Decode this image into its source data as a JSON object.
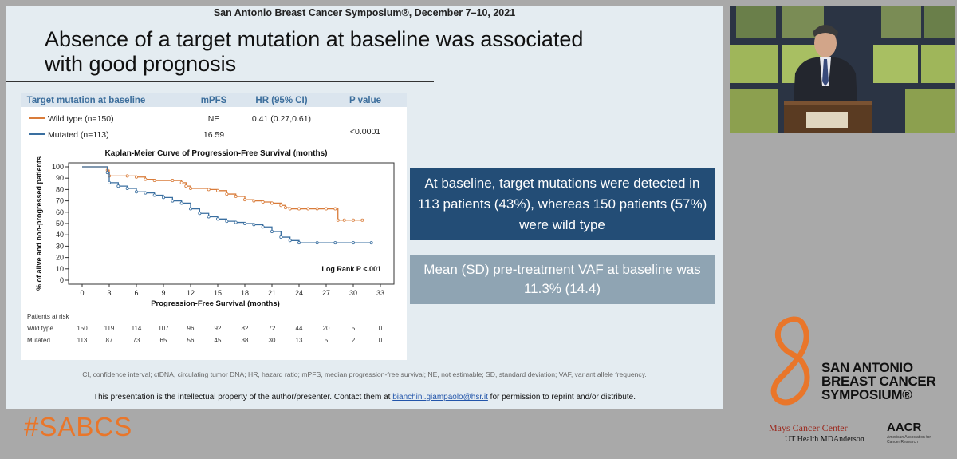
{
  "slide": {
    "conference": "San Antonio Breast Cancer Symposium®, December 7–10, 2021",
    "title_line1": "Absence of a target mutation at baseline was associated",
    "title_line2": "with good prognosis",
    "box1": "At baseline, target mutations were detected in 113 patients (43%), whereas 150 patients (57%) were wild type",
    "box2": "Mean (SD) pre-treatment VAF at baseline was 11.3% (14.4)",
    "footnote": "CI, confidence interval; ctDNA, circulating tumor DNA; HR, hazard ratio; mPFS, median progression-free survival; NE, not estimable; SD, standard deviation; VAF, variant allele frequency.",
    "ip_before": "This presentation is the intellectual property of the author/presenter. Contact them at ",
    "ip_email": "bianchini.giampaolo@hsr.it",
    "ip_after": " for permission to reprint and/or distribute."
  },
  "table": {
    "headers": [
      "Target mutation at baseline",
      "mPFS",
      "HR (95% CI)",
      "P value"
    ],
    "rows": [
      {
        "label": "Wild type (n=150)",
        "mpfs": "NE",
        "hr": "0.41 (0.27,0.61)"
      },
      {
        "label": "Mutated (n=113)",
        "mpfs": "16.59",
        "hr": ""
      }
    ],
    "p_value": "<0.0001"
  },
  "chart_data": {
    "type": "line",
    "title": "Kaplan-Meier Curve of Progression-Free Survival (months)",
    "xlabel": "Progression-Free Survival (months)",
    "ylabel": "% of alive and non-progressed patients",
    "xlim": [
      0,
      33
    ],
    "ylim": [
      0,
      100
    ],
    "xticks": [
      0,
      3,
      6,
      9,
      12,
      15,
      18,
      21,
      24,
      27,
      30,
      33
    ],
    "yticks": [
      0,
      10,
      20,
      30,
      40,
      50,
      60,
      70,
      80,
      90,
      100
    ],
    "annotation": "Log Rank P <.001",
    "colors": {
      "wild_type": "#d97c3a",
      "mutated": "#3a6fa0"
    },
    "series": [
      {
        "name": "Wild type (n=150)",
        "x": [
          0,
          2,
          2.8,
          3,
          5,
          6,
          7,
          8,
          10,
          11,
          11.5,
          12,
          14,
          15,
          16,
          17,
          18,
          19,
          20,
          21,
          22,
          22.5,
          23,
          24,
          25,
          26,
          27,
          28,
          28.3,
          29,
          30,
          31
        ],
        "y": [
          100,
          100,
          97,
          92,
          92,
          91,
          89,
          88,
          88,
          86,
          83,
          81,
          80,
          79,
          76,
          74,
          71,
          70,
          69,
          68,
          66,
          64,
          63,
          63,
          63,
          63,
          63,
          63,
          53,
          53,
          53,
          53
        ]
      },
      {
        "name": "Mutated (n=113)",
        "x": [
          0,
          2,
          2.8,
          3,
          4,
          5,
          6,
          7,
          8,
          9,
          10,
          11,
          12,
          13,
          14,
          15,
          16,
          17,
          18,
          19,
          20,
          21,
          22,
          23,
          24,
          26,
          28,
          30,
          32
        ],
        "y": [
          100,
          100,
          95,
          86,
          83,
          81,
          78,
          77,
          75,
          73,
          70,
          68,
          63,
          59,
          56,
          54,
          52,
          51,
          50,
          49,
          47,
          43,
          38,
          35,
          33,
          33,
          33,
          33,
          33
        ]
      }
    ],
    "at_risk_label": "Patients at risk",
    "at_risk": [
      {
        "name": "Wild type",
        "values": [
          150,
          119,
          114,
          107,
          96,
          92,
          82,
          72,
          44,
          20,
          5,
          0
        ]
      },
      {
        "name": "Mutated",
        "values": [
          113,
          87,
          73,
          65,
          56,
          45,
          38,
          30,
          13,
          5,
          2,
          0
        ]
      }
    ]
  },
  "sidebar": {
    "hashtag": "#SABCS",
    "logo_line1": "SAN ANTONIO",
    "logo_line2": "BREAST CANCER",
    "logo_line3": "SYMPOSIUM®",
    "mays": "Mays Cancer Center",
    "ut_health": "UT Health  MDAnderson",
    "aacr": "AACR",
    "aacr_sub": "American Association for Cancer Research"
  }
}
